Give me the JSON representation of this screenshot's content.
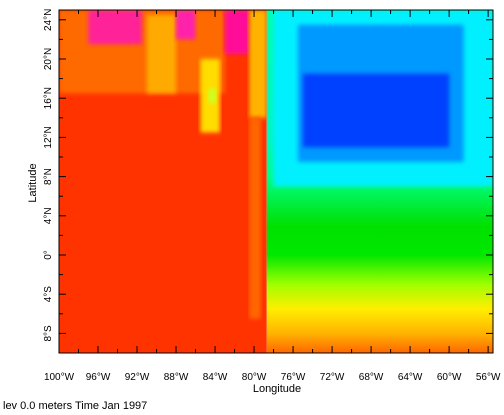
{
  "chart_data": {
    "type": "heatmap",
    "title": "",
    "xlabel": "Longitude",
    "ylabel": "Latitude",
    "xlim": [
      -100,
      -55.5
    ],
    "ylim": [
      -10,
      25
    ],
    "colorbar": "none",
    "colormap": [
      "#ff2200",
      "#ff6a00",
      "#ffb400",
      "#ffee00",
      "#c8ff00",
      "#00e000",
      "#00ffc0",
      "#00e6ff",
      "#00b4ff",
      "#0060ff",
      "#0022ff",
      "#ff33cc"
    ],
    "x_ticks": {
      "values": [
        -100,
        -96,
        -92,
        -88,
        -84,
        -80,
        -76,
        -72,
        -68,
        -64,
        -60,
        -56
      ],
      "labels": [
        "100°W",
        "96°W",
        "92°W",
        "88°W",
        "84°W",
        "80°W",
        "76°W",
        "72°W",
        "68°W",
        "64°W",
        "60°W",
        "56°W"
      ]
    },
    "y_ticks": {
      "values": [
        -8,
        -4,
        0,
        4,
        8,
        12,
        16,
        20,
        24
      ],
      "labels": [
        "8°S",
        "4°S",
        "0°",
        "4°N",
        "8°N",
        "12°N",
        "16°N",
        "20°N",
        "24°N"
      ]
    },
    "regions": [
      {
        "id": "pacific-base",
        "lon": [
          -100,
          -78.7
        ],
        "lat": [
          -10,
          25
        ],
        "color": "#ff3300"
      },
      {
        "id": "north-pacific-warm",
        "lon": [
          -100,
          -83
        ],
        "lat": [
          16.5,
          25
        ],
        "color": "#ff6a00"
      },
      {
        "id": "magenta-west",
        "lon": [
          -97,
          -91.5
        ],
        "lat": [
          21.5,
          25
        ],
        "color": "#ff2299"
      },
      {
        "id": "yellow-band-1",
        "lon": [
          -91,
          -88
        ],
        "lat": [
          16.5,
          24.5
        ],
        "color": "#ffaa00"
      },
      {
        "id": "magenta-mid",
        "lon": [
          -88,
          -86
        ],
        "lat": [
          22,
          25
        ],
        "color": "#ff22aa"
      },
      {
        "id": "yellow-band-2",
        "lon": [
          -85.5,
          -83.5
        ],
        "lat": [
          12.5,
          20
        ],
        "color": "#ffdd00"
      },
      {
        "id": "green-spot",
        "lon": [
          -84.7,
          -83.9
        ],
        "lat": [
          15.5,
          17
        ],
        "color": "#ccff22"
      },
      {
        "id": "magenta-east",
        "lon": [
          -83,
          -80.5
        ],
        "lat": [
          20.5,
          25
        ],
        "color": "#ff1199"
      },
      {
        "id": "yellow-coast",
        "lon": [
          -80.5,
          -78.7
        ],
        "lat": [
          14,
          25
        ],
        "color": "#ffb300"
      },
      {
        "id": "orange-coast-strip",
        "lon": [
          -80.5,
          -79.3
        ],
        "lat": [
          -6.5,
          14
        ],
        "color": "#ff6600"
      },
      {
        "id": "atlantic-gradient",
        "lon": [
          -78.7,
          -55.5
        ],
        "lat": [
          -10,
          25
        ],
        "color": "gradient"
      },
      {
        "id": "cyan-cell",
        "lon": [
          -78,
          -55.5
        ],
        "lat": [
          7,
          25
        ],
        "color": "#00f0ff"
      },
      {
        "id": "blue-cell",
        "lon": [
          -75.5,
          -58.5
        ],
        "lat": [
          9.5,
          23.5
        ],
        "color": "#0099ff"
      },
      {
        "id": "deep-blue-cell",
        "lon": [
          -75,
          -60
        ],
        "lat": [
          11,
          18.5
        ],
        "color": "#0040ff"
      }
    ],
    "atlantic_gradient_stops": [
      {
        "lat": 25,
        "color": "#00ffaa"
      },
      {
        "lat": 12,
        "color": "#00f5c0"
      },
      {
        "lat": 8,
        "color": "#00ff88"
      },
      {
        "lat": 3,
        "color": "#00e000"
      },
      {
        "lat": 0,
        "color": "#00e800"
      },
      {
        "lat": -3,
        "color": "#a0ff00"
      },
      {
        "lat": -5.5,
        "color": "#ffee00"
      },
      {
        "lat": -8,
        "color": "#ffb300"
      },
      {
        "lat": -10,
        "color": "#ff6600"
      }
    ]
  },
  "footer": {
    "text": "lev 0.0 meters Time Jan 1997"
  }
}
